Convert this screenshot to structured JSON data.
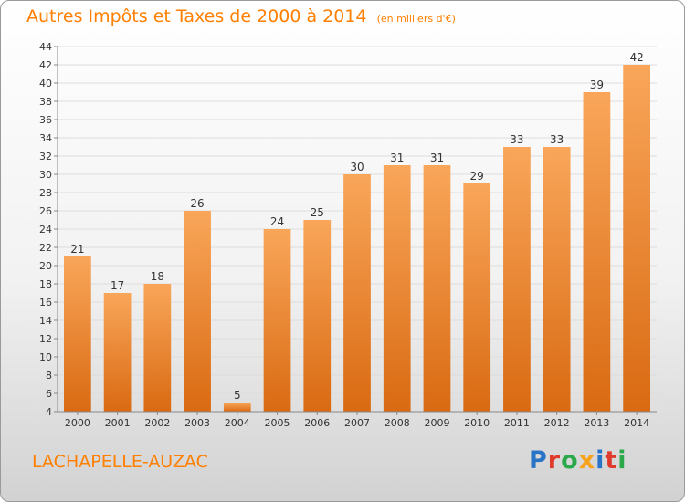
{
  "header": {
    "title": "Autres Impôts et Taxes de 2000 à 2014",
    "unit": "(en milliers d'€)"
  },
  "footer": {
    "commune": "LACHAPELLE-AUZAC",
    "logo_letters": [
      {
        "ch": "P",
        "color": "#2a74c8"
      },
      {
        "ch": "r",
        "color": "#e03a2c"
      },
      {
        "ch": "o",
        "color": "#2aa84a"
      },
      {
        "ch": "x",
        "color": "#f7a21b"
      },
      {
        "ch": "i",
        "color": "#2a74c8"
      },
      {
        "ch": "t",
        "color": "#e03a2c"
      },
      {
        "ch": "i",
        "color": "#2aa84a"
      }
    ]
  },
  "colors": {
    "bar_light": "#f9a65a",
    "bar_dark": "#d96a12",
    "accent": "#ff7f00"
  },
  "chart_data": {
    "type": "bar",
    "title": "Autres Impôts et Taxes de 2000 à 2014",
    "subtitle": "(en milliers d'€)",
    "categories": [
      "2000",
      "2001",
      "2002",
      "2003",
      "2004",
      "2005",
      "2006",
      "2007",
      "2008",
      "2009",
      "2010",
      "2011",
      "2012",
      "2013",
      "2014"
    ],
    "values": [
      21,
      17,
      18,
      26,
      5,
      24,
      25,
      30,
      31,
      31,
      29,
      33,
      33,
      39,
      42
    ],
    "ylim": [
      4,
      44
    ],
    "yticks": [
      4,
      6,
      8,
      10,
      12,
      14,
      16,
      18,
      20,
      22,
      24,
      26,
      28,
      30,
      32,
      34,
      36,
      38,
      40,
      42,
      44
    ],
    "grid": true,
    "data_labels": true
  }
}
